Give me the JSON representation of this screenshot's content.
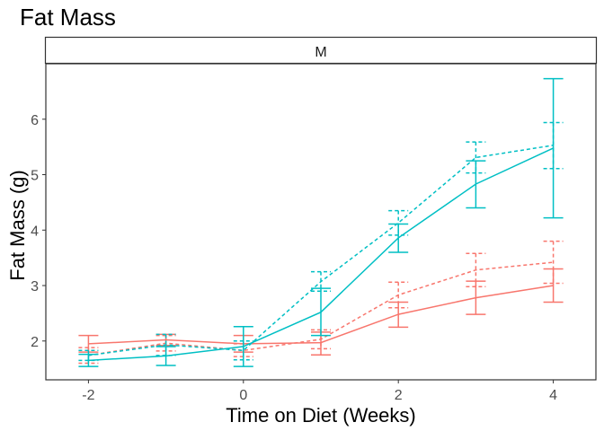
{
  "chart_data": {
    "type": "line",
    "title": "Fat Mass",
    "facet_label": "M",
    "xlabel": "Time on Diet (Weeks)",
    "ylabel": "Fat Mass (g)",
    "xlim": [
      -2.55,
      4.55
    ],
    "ylim": [
      1.3,
      7.0
    ],
    "x_ticks": [
      -2,
      0,
      2,
      4
    ],
    "y_ticks": [
      2,
      3,
      4,
      5,
      6
    ],
    "grid": false,
    "legend": "none",
    "series": [
      {
        "color": "#F8766D",
        "linestyle": "solid",
        "points": [
          {
            "x": -2,
            "y": 1.95,
            "lo": 1.8,
            "hi": 2.1
          },
          {
            "x": -1,
            "y": 2.02,
            "lo": 1.92,
            "hi": 2.12
          },
          {
            "x": 0,
            "y": 1.95,
            "lo": 1.8,
            "hi": 2.1
          },
          {
            "x": 1,
            "y": 1.97,
            "lo": 1.75,
            "hi": 2.16
          },
          {
            "x": 2,
            "y": 2.48,
            "lo": 2.25,
            "hi": 2.7
          },
          {
            "x": 3,
            "y": 2.78,
            "lo": 2.48,
            "hi": 3.08
          },
          {
            "x": 4,
            "y": 3.0,
            "lo": 2.7,
            "hi": 3.3
          }
        ]
      },
      {
        "color": "#F8766D",
        "linestyle": "dashed",
        "points": [
          {
            "x": -2,
            "y": 1.74,
            "lo": 1.6,
            "hi": 1.88
          },
          {
            "x": -1,
            "y": 1.96,
            "lo": 1.82,
            "hi": 2.1
          },
          {
            "x": 0,
            "y": 1.83,
            "lo": 1.72,
            "hi": 1.95
          },
          {
            "x": 1,
            "y": 2.03,
            "lo": 1.86,
            "hi": 2.2
          },
          {
            "x": 2,
            "y": 2.83,
            "lo": 2.6,
            "hi": 3.06
          },
          {
            "x": 3,
            "y": 3.28,
            "lo": 2.98,
            "hi": 3.58
          },
          {
            "x": 4,
            "y": 3.42,
            "lo": 3.04,
            "hi": 3.8
          }
        ]
      },
      {
        "color": "#00BFC4",
        "linestyle": "solid",
        "points": [
          {
            "x": -2,
            "y": 1.65,
            "lo": 1.54,
            "hi": 1.76
          },
          {
            "x": -1,
            "y": 1.73,
            "lo": 1.56,
            "hi": 1.9
          },
          {
            "x": 0,
            "y": 1.9,
            "lo": 1.54,
            "hi": 2.26
          },
          {
            "x": 1,
            "y": 2.52,
            "lo": 2.1,
            "hi": 2.95
          },
          {
            "x": 2,
            "y": 3.86,
            "lo": 3.6,
            "hi": 4.11
          },
          {
            "x": 3,
            "y": 4.83,
            "lo": 4.4,
            "hi": 5.25
          },
          {
            "x": 4,
            "y": 5.48,
            "lo": 4.22,
            "hi": 6.73
          }
        ]
      },
      {
        "color": "#00BFC4",
        "linestyle": "dashed",
        "points": [
          {
            "x": -2,
            "y": 1.74,
            "lo": 1.65,
            "hi": 1.83
          },
          {
            "x": -1,
            "y": 1.93,
            "lo": 1.74,
            "hi": 2.12
          },
          {
            "x": 0,
            "y": 1.83,
            "lo": 1.66,
            "hi": 2.0
          },
          {
            "x": 1,
            "y": 3.07,
            "lo": 2.9,
            "hi": 3.25
          },
          {
            "x": 2,
            "y": 4.13,
            "lo": 3.91,
            "hi": 4.35
          },
          {
            "x": 3,
            "y": 5.31,
            "lo": 5.03,
            "hi": 5.59
          },
          {
            "x": 4,
            "y": 5.53,
            "lo": 5.11,
            "hi": 5.94
          }
        ]
      }
    ]
  }
}
